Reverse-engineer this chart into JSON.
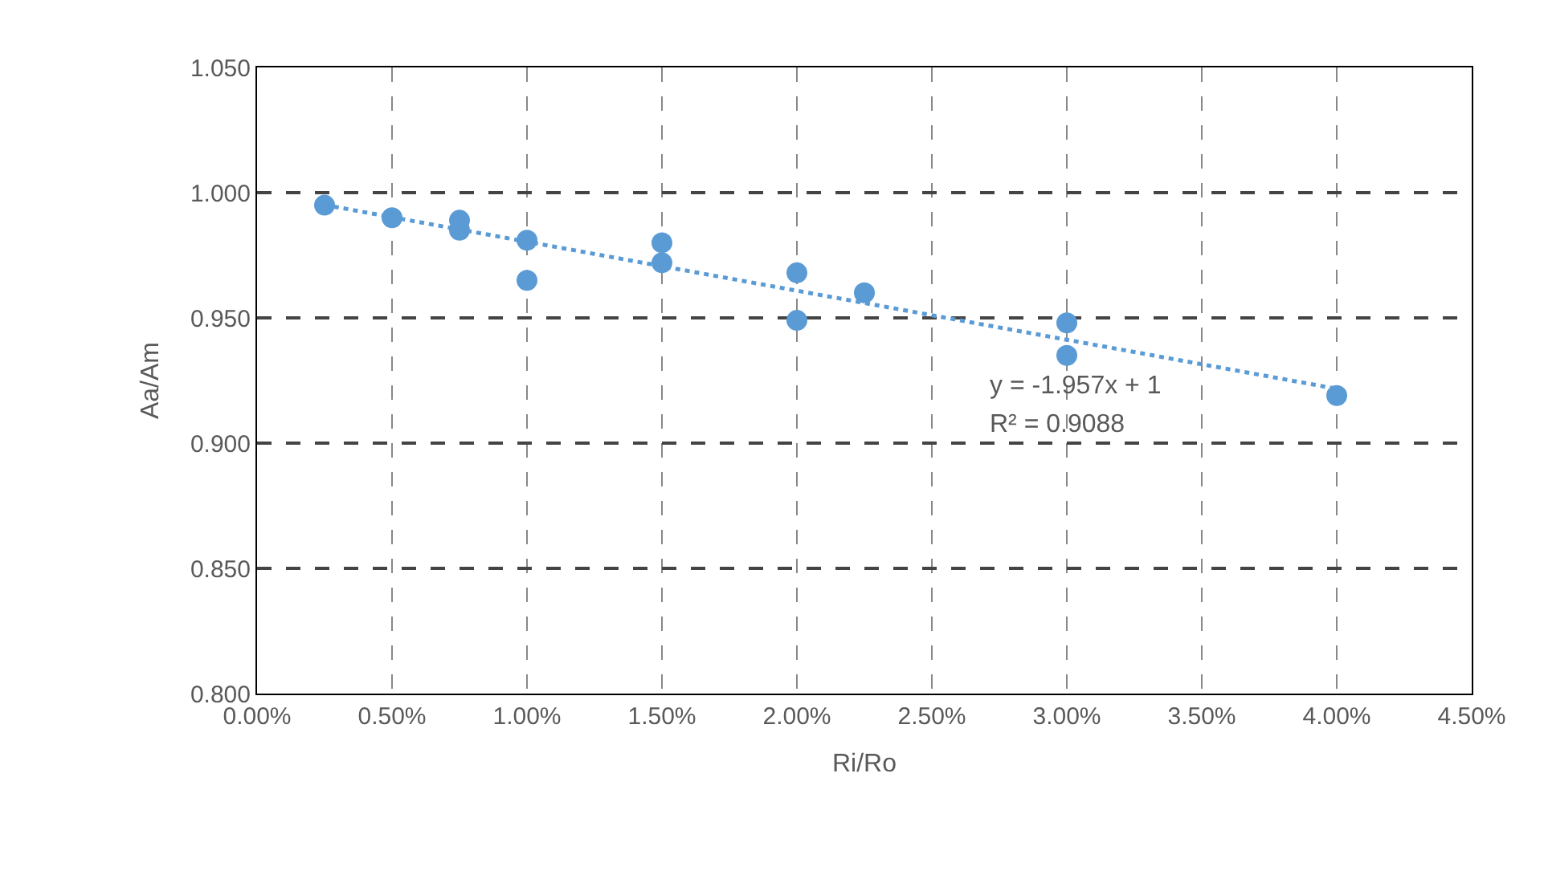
{
  "chart_data": {
    "type": "scatter",
    "xlabel": "Ri/Ro",
    "ylabel": "Aa/Am",
    "series": [
      {
        "color": "#5b9bd5",
        "x": [
          0.0025,
          0.005,
          0.0075,
          0.0075,
          0.01,
          0.01,
          0.015,
          0.015,
          0.02,
          0.02,
          0.0225,
          0.03,
          0.03,
          0.04
        ],
        "values": [
          0.995,
          0.99,
          0.989,
          0.985,
          0.981,
          0.965,
          0.98,
          0.972,
          0.968,
          0.949,
          0.96,
          0.948,
          0.935,
          0.919
        ],
        "marker": "circle"
      },
      {
        "type": "line",
        "color": "#5b9bd5",
        "line_style": "dotted",
        "marker": "none",
        "x": [
          0.0025,
          0.04
        ],
        "values": [
          0.9951,
          0.9217
        ]
      }
    ],
    "xlim": [
      0,
      0.045
    ],
    "xticks": [
      {
        "value": 0,
        "label": "0.00%"
      },
      {
        "value": 0.005,
        "label": "0.50%"
      },
      {
        "value": 0.01,
        "label": "1.00%"
      },
      {
        "value": 0.015,
        "label": "1.50%"
      },
      {
        "value": 0.02,
        "label": "2.00%"
      },
      {
        "value": 0.025,
        "label": "2.50%"
      },
      {
        "value": 0.03,
        "label": "3.00%"
      },
      {
        "value": 0.035,
        "label": "3.50%"
      },
      {
        "value": 0.04,
        "label": "4.00%"
      },
      {
        "value": 0.045,
        "label": "4.50%"
      }
    ],
    "ylim": [
      0.8,
      1.05
    ],
    "yticks": [
      {
        "value": 0.8,
        "label": "0.800"
      },
      {
        "value": 0.85,
        "label": "0.850"
      },
      {
        "value": 0.9,
        "label": "0.900"
      },
      {
        "value": 0.95,
        "label": "0.950"
      },
      {
        "value": 1.0,
        "label": "1.000"
      },
      {
        "value": 1.05,
        "label": "1.050"
      }
    ],
    "grid": true,
    "annotations": [
      "y = -1.957x + 1",
      "R² = 0.9088"
    ]
  }
}
